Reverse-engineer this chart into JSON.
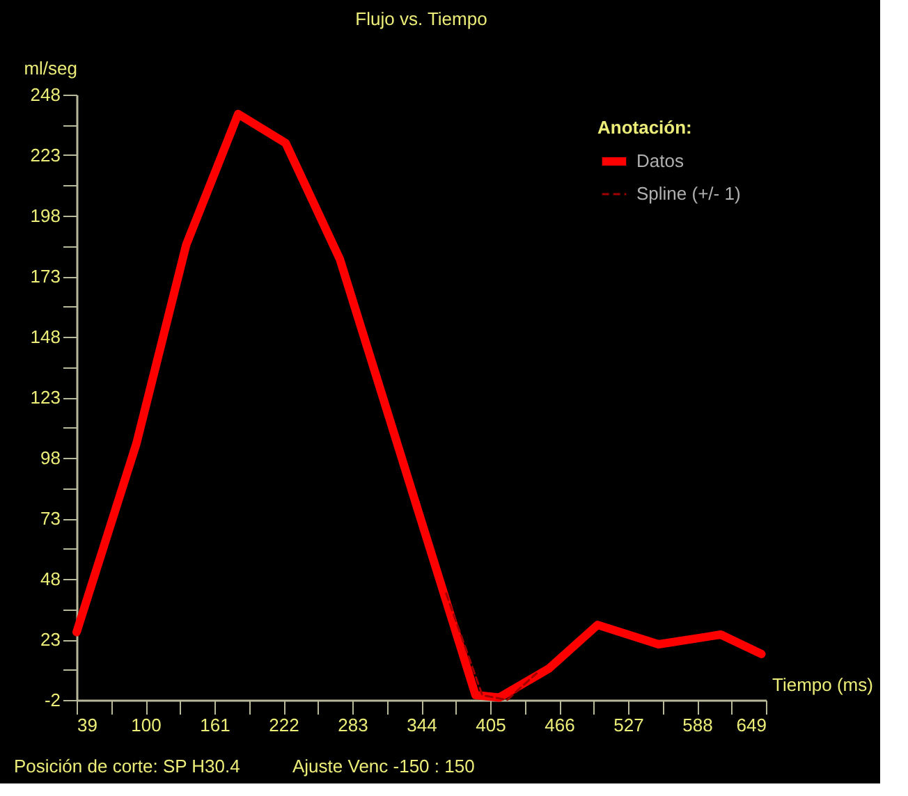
{
  "chart_data": {
    "type": "line",
    "title": "Flujo vs. Tiempo",
    "ylabel": "ml/seg",
    "xlabel": "Tiempo (ms)",
    "legend_title": "Anotación:",
    "annotations": [
      "Posición de corte: SP  H30.4",
      "Ajuste Venc -150 : 150"
    ],
    "series": [
      {
        "name": "Datos",
        "color": "#ff0000",
        "line_style": "solid",
        "x": [
          39,
          92,
          136,
          182,
          224,
          272,
          392,
          413,
          457,
          500,
          554,
          609,
          645
        ],
        "values": [
          26,
          104,
          186,
          240,
          228,
          180,
          0,
          -1,
          11,
          29,
          21,
          25,
          17
        ]
      },
      {
        "name": "Spline (+/- 1)",
        "color": "#a00000",
        "line_style": "dashed",
        "x": [
          366,
          398,
          420,
          446
        ],
        "values": [
          42,
          0,
          -2,
          9
        ]
      }
    ],
    "xlim": [
      39,
      649
    ],
    "ylim": [
      -2,
      248
    ],
    "xticks": [
      39,
      {
        "value": 69.5,
        "label": null
      },
      100,
      {
        "value": 130.5,
        "label": null
      },
      161,
      {
        "value": 191.5,
        "label": null
      },
      222,
      {
        "value": 252.5,
        "label": null
      },
      283,
      {
        "value": 313.5,
        "label": null
      },
      344,
      {
        "value": 374.5,
        "label": null
      },
      405,
      {
        "value": 435.5,
        "label": null
      },
      466,
      {
        "value": 496.5,
        "label": null
      },
      527,
      {
        "value": 557.5,
        "label": null
      },
      588,
      {
        "value": 618.5,
        "label": null
      },
      649
    ],
    "yticks": [
      -2,
      {
        "value": 10.5,
        "label": null
      },
      23,
      {
        "value": 35.5,
        "label": null
      },
      48,
      {
        "value": 60.5,
        "label": null
      },
      73,
      {
        "value": 85.5,
        "label": null
      },
      98,
      {
        "value": 110.5,
        "label": null
      },
      123,
      {
        "value": 135.5,
        "label": null
      },
      148,
      {
        "value": 160.5,
        "label": null
      },
      173,
      {
        "value": 185.5,
        "label": null
      },
      198,
      {
        "value": 210.5,
        "label": null
      },
      223,
      {
        "value": 235.5,
        "label": null
      },
      248
    ],
    "grid": false,
    "legend": "top right"
  }
}
